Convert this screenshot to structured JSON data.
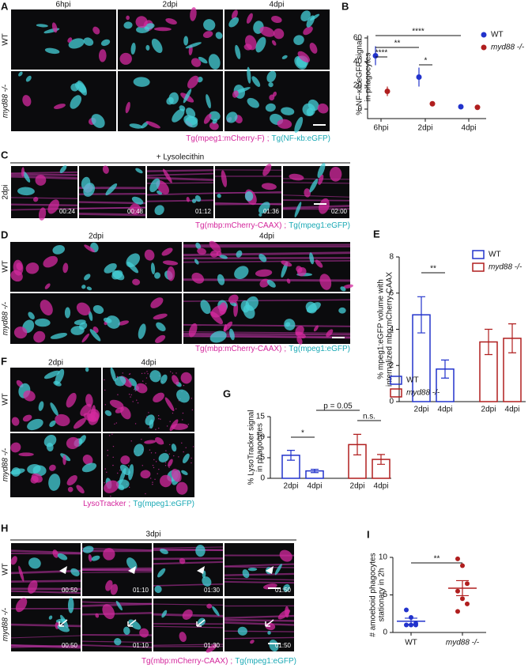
{
  "image_panels": {
    "a": {
      "label": "A",
      "columns": [
        "6hpi",
        "2dpi",
        "4dpi"
      ],
      "rows": [
        "WT",
        "myd88 -/-"
      ],
      "caption": {
        "left": "Tg(mpeg1:mCherry-F)",
        "separator": ";",
        "right": "Tg(NF-κb:eGFP)"
      }
    },
    "c": {
      "label": "C",
      "header": "+ Lysolecithin",
      "rows": [
        "2dpi"
      ],
      "timestamps": [
        "00:24",
        "00:48",
        "01:12",
        "01:36",
        "02:00"
      ],
      "caption": {
        "left": "Tg(mbp:mCherry-CAAX)",
        "separator": ";",
        "right": "Tg(mpeg1:eGFP)"
      }
    },
    "d": {
      "label": "D",
      "columns": [
        "2dpi",
        "4dpi"
      ],
      "rows": [
        "WT",
        "myd88 -/-"
      ],
      "caption": {
        "left": "Tg(mbp:mCherry-CAAX)",
        "separator": ";",
        "right": "Tg(mpeg1:eGFP)"
      }
    },
    "f": {
      "label": "F",
      "columns": [
        "2dpi",
        "4dpi"
      ],
      "rows": [
        "WT",
        "myd88 -/-"
      ],
      "caption": {
        "left": "LysoTracker",
        "separator": ";",
        "right": "Tg(mpeg1:eGFP)"
      }
    },
    "h": {
      "label": "H",
      "header": "3dpi",
      "rows": [
        "WT",
        "myd88 -/-"
      ],
      "timestamps": [
        "00:50",
        "01:10",
        "01:30",
        "01:50"
      ],
      "caption": {
        "left": "Tg(mbp:mCherry-CAAX)",
        "separator": ";",
        "right": "Tg(mpeg1:eGFP)"
      }
    }
  },
  "chart_data": [
    {
      "label": "B",
      "type": "errorbar",
      "ylabel": [
        "% NF-κb:eGFP signal",
        "in phagocytes"
      ],
      "categories": [
        "6hpi",
        "2dpi",
        "4dpi"
      ],
      "ylim": [
        -8,
        62
      ],
      "yticks": [
        0,
        20,
        40,
        60
      ],
      "series": [
        {
          "name": "WT",
          "color": "#2233cc",
          "values": [
            45,
            27,
            2
          ],
          "errors": [
            8,
            8,
            0
          ]
        },
        {
          "name": "myd88 -/-",
          "color": "#b01e1e",
          "values": [
            15,
            4.5,
            1.5
          ],
          "errors": [
            4,
            2,
            0
          ]
        }
      ],
      "significance": [
        "****",
        "**",
        "*",
        "****"
      ]
    },
    {
      "label": "E",
      "type": "bar",
      "ylabel": [
        "% mpeg1:eGFP volume with",
        "internalized mbp:mCherry-CAAX"
      ],
      "categories": [
        "2dpi",
        "4dpi"
      ],
      "ylim": [
        0,
        8
      ],
      "yticks": [
        0,
        2,
        4,
        6,
        8
      ],
      "series": [
        {
          "name": "WT",
          "color": "#2233cc",
          "values": [
            4.8,
            1.8
          ],
          "errors": [
            1.0,
            0.5
          ]
        },
        {
          "name": "myd88 -/-",
          "color": "#b01e1e",
          "values": [
            3.3,
            3.5
          ],
          "errors": [
            0.7,
            0.8
          ]
        }
      ],
      "significance": [
        "**"
      ]
    },
    {
      "label": "G",
      "type": "bar",
      "ylabel": [
        "% LysoTracker signal",
        "in phagocytes"
      ],
      "categories": [
        "2dpi",
        "4dpi"
      ],
      "ylim": [
        0,
        15
      ],
      "yticks": [
        0,
        5,
        10,
        15
      ],
      "series": [
        {
          "name": "WT",
          "color": "#2233cc",
          "values": [
            5.6,
            1.8
          ],
          "errors": [
            1.2,
            0.4
          ]
        },
        {
          "name": "myd88 -/-",
          "color": "#b01e1e",
          "values": [
            8.2,
            4.6
          ],
          "errors": [
            2.5,
            1.2
          ]
        }
      ],
      "significance": [
        "*",
        "p = 0.05",
        "n.s."
      ]
    },
    {
      "label": "I",
      "type": "dot",
      "ylabel": [
        "# amoeboid phagocytes",
        "stationary in 2h"
      ],
      "ylim": [
        0,
        10
      ],
      "yticks": [
        0,
        5,
        10
      ],
      "groups": [
        {
          "name": "WT",
          "color": "#2233cc",
          "values": [
            3,
            2,
            1.2,
            1,
            1,
            1
          ],
          "mean": 1.5,
          "sem": 0.4
        },
        {
          "name": "myd88 -/-",
          "color": "#b01e1e",
          "values": [
            9.8,
            8.9,
            6.5,
            5.5,
            4.5,
            3.8,
            2.8
          ],
          "mean": 5.9,
          "sem": 1.0
        }
      ],
      "significance": [
        "**"
      ]
    }
  ]
}
